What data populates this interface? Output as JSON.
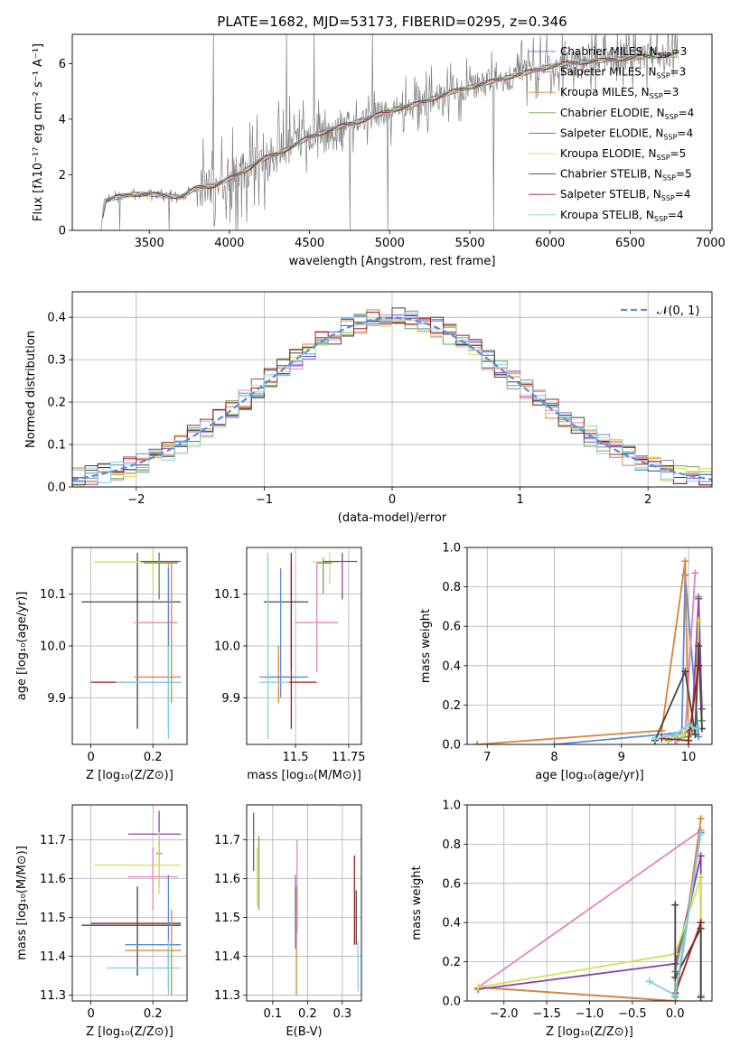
{
  "figure_title": "PLATE=1682, MJD=53173, FIBERID=0295, z=0.346",
  "chart_data": [
    {
      "id": "spectrum",
      "type": "line",
      "xlabel": "wavelength [Angstrom, rest frame]",
      "ylabel": "Flux [fλ10⁻¹⁷ erg cm⁻² s⁻¹ A⁻¹]",
      "xlim": [
        3020,
        7010
      ],
      "ylim": [
        0,
        7.05
      ],
      "xticks": [
        3500,
        4000,
        4500,
        5000,
        5500,
        6000,
        6500,
        7000
      ],
      "yticks": [
        0,
        2,
        4,
        6
      ],
      "legend_position": "top-right",
      "series": [
        {
          "name": "Chabrier MILES, N_SSP=3",
          "color": "#5a8bd6"
        },
        {
          "name": "Salpeter MILES, N_SSP=3",
          "color": "#e585bd"
        },
        {
          "name": "Kroupa MILES, N_SSP=3",
          "color": "#d9843a"
        },
        {
          "name": "Chabrier ELODIE, N_SSP=4",
          "color": "#6aa84f"
        },
        {
          "name": "Salpeter ELODIE, N_SSP=4",
          "color": "#8e44ad"
        },
        {
          "name": "Kroupa ELODIE, N_SSP=5",
          "color": "#d4e157"
        },
        {
          "name": "Chabrier STELIB, N_SSP=5",
          "color": "#444444"
        },
        {
          "name": "Salpeter STELIB, N_SSP=4",
          "color": "#a61c1c"
        },
        {
          "name": "Kroupa STELIB, N_SSP=4",
          "color": "#7fd0e8"
        }
      ],
      "observed_color": "#7f7f7f",
      "continuum_points": [
        [
          3200,
          0
        ],
        [
          3220,
          1.05
        ],
        [
          3300,
          1.2
        ],
        [
          3400,
          1.3
        ],
        [
          3500,
          1.3
        ],
        [
          3600,
          1.25
        ],
        [
          3700,
          1.2
        ],
        [
          3800,
          1.55
        ],
        [
          3900,
          1.6
        ],
        [
          4000,
          1.85
        ],
        [
          4100,
          2.15
        ],
        [
          4200,
          2.55
        ],
        [
          4300,
          2.75
        ],
        [
          4400,
          3.05
        ],
        [
          4500,
          3.35
        ],
        [
          4600,
          3.55
        ],
        [
          4700,
          3.75
        ],
        [
          4800,
          3.9
        ],
        [
          4900,
          4.1
        ],
        [
          5000,
          4.3
        ],
        [
          5100,
          4.45
        ],
        [
          5200,
          4.6
        ],
        [
          5300,
          4.8
        ],
        [
          5400,
          5.0
        ],
        [
          5500,
          5.15
        ],
        [
          5600,
          5.3
        ],
        [
          5700,
          5.45
        ],
        [
          5800,
          5.6
        ],
        [
          5900,
          5.75
        ],
        [
          6000,
          5.9
        ],
        [
          6100,
          6.0
        ],
        [
          6200,
          6.05
        ],
        [
          6300,
          6.1
        ],
        [
          6400,
          6.15
        ],
        [
          6500,
          6.2
        ],
        [
          6600,
          6.25
        ],
        [
          6700,
          6.3
        ],
        [
          6800,
          6.3
        ]
      ]
    },
    {
      "id": "residuals",
      "type": "line",
      "xlabel": "(data-model)/error",
      "ylabel": "Normed distribution",
      "xlim": [
        -2.5,
        2.5
      ],
      "ylim": [
        0,
        0.46
      ],
      "xticks": [
        -2,
        -1,
        0,
        1,
        2
      ],
      "yticks": [
        0.0,
        0.1,
        0.2,
        0.3,
        0.4
      ],
      "grid": true,
      "legend_position": "top-right",
      "legend_label": "𝒩(0, 1)",
      "gaussian_color": "#5a8bd6"
    },
    {
      "id": "z-vs-age",
      "type": "scatter",
      "xlabel": "Z [log₁₀(Z/Z⊙)]",
      "ylabel": "age  [log₁₀(age/yr)]",
      "xlim": [
        -0.06,
        0.31
      ],
      "ylim": [
        9.81,
        10.19
      ],
      "xticks": [
        0.0,
        0.2
      ],
      "yticks": [
        9.9,
        10.0,
        10.1
      ],
      "grid": true,
      "errorbars": [
        {
          "series": 6,
          "x": 0.15,
          "y": 10.085,
          "xlo": -0.03,
          "xhi": 0.29,
          "ylo": 9.84,
          "yhi": 10.18
        },
        {
          "series": 5,
          "x": 0.2,
          "y": 10.162,
          "xlo": 0.01,
          "xhi": 0.28,
          "ylo": 10.12,
          "yhi": 10.18
        },
        {
          "series": 4,
          "x": 0.22,
          "y": 10.163,
          "xlo": 0.16,
          "xhi": 0.29,
          "ylo": 10.09,
          "yhi": 10.18
        },
        {
          "series": 3,
          "x": 0.22,
          "y": 10.16,
          "xlo": 0.17,
          "xhi": 0.28,
          "ylo": 10.1,
          "yhi": 10.17
        },
        {
          "series": 1,
          "x": 0.25,
          "y": 10.045,
          "xlo": 0.14,
          "xhi": 0.28,
          "ylo": 9.95,
          "yhi": 10.16
        },
        {
          "series": 2,
          "x": 0.26,
          "y": 9.94,
          "xlo": 0.14,
          "xhi": 0.29,
          "ylo": 9.89,
          "yhi": 10.16
        },
        {
          "series": 0,
          "x": 0.25,
          "y": 9.93,
          "xlo": 0.12,
          "xhi": 0.29,
          "ylo": 9.84,
          "yhi": 10.15
        },
        {
          "series": 7,
          "x": 0.06,
          "y": 9.93,
          "xlo": 0.0,
          "xhi": 0.11,
          "ylo": 9.93,
          "yhi": 9.93
        },
        {
          "series": 8,
          "x": 0.25,
          "y": 9.93,
          "xlo": 0.08,
          "xhi": 0.29,
          "ylo": 9.82,
          "yhi": 10.0
        }
      ]
    },
    {
      "id": "mass-vs-age",
      "type": "scatter",
      "xlabel": "mass [log₁₀(M/M⊙)]",
      "ylabel": "",
      "xlim": [
        11.27,
        11.81
      ],
      "ylim": [
        9.81,
        10.19
      ],
      "xticks": [
        11.5,
        11.75
      ],
      "yticks": [
        9.9,
        10.0,
        10.1
      ],
      "grid": true,
      "errorbars": [
        {
          "series": 5,
          "x": 11.66,
          "y": 10.162,
          "xlo": 11.58,
          "xhi": 11.7,
          "ylo": 10.12,
          "yhi": 10.18
        },
        {
          "series": 4,
          "x": 11.72,
          "y": 10.163,
          "xlo": 11.63,
          "xhi": 11.79,
          "ylo": 10.09,
          "yhi": 10.18
        },
        {
          "series": 3,
          "x": 11.63,
          "y": 10.16,
          "xlo": 11.6,
          "xhi": 11.67,
          "ylo": 10.1,
          "yhi": 10.17
        },
        {
          "series": 6,
          "x": 11.48,
          "y": 10.085,
          "xlo": 11.35,
          "xhi": 11.56,
          "ylo": 9.96,
          "yhi": 10.18
        },
        {
          "series": 1,
          "x": 11.6,
          "y": 10.045,
          "xlo": 11.5,
          "xhi": 11.7,
          "ylo": 9.95,
          "yhi": 10.16
        },
        {
          "series": 2,
          "x": 11.42,
          "y": 9.94,
          "xlo": 11.33,
          "xhi": 11.5,
          "ylo": 9.89,
          "yhi": 10.0
        },
        {
          "series": 0,
          "x": 11.43,
          "y": 9.94,
          "xlo": 11.36,
          "xhi": 11.56,
          "ylo": 9.9,
          "yhi": 10.15
        },
        {
          "series": 7,
          "x": 11.48,
          "y": 9.93,
          "xlo": 11.47,
          "xhi": 11.6,
          "ylo": 9.84,
          "yhi": 10.16
        },
        {
          "series": 8,
          "x": 11.37,
          "y": 9.93,
          "xlo": 11.33,
          "xhi": 11.47,
          "ylo": 9.82,
          "yhi": 10.18
        }
      ]
    },
    {
      "id": "age-vs-weight",
      "type": "line",
      "xlabel": "age  [log₁₀(age/yr)]",
      "ylabel": "mass weight",
      "xlim": [
        6.7,
        10.35
      ],
      "ylim": [
        0,
        1.0
      ],
      "xticks": [
        7,
        8,
        9,
        10
      ],
      "yticks": [
        0.0,
        0.2,
        0.4,
        0.6,
        0.8,
        1.0
      ],
      "grid": true,
      "series": [
        {
          "series": 0,
          "points": [
            [
              8.0,
              0.0
            ],
            [
              9.9,
              0.06
            ],
            [
              9.95,
              0.86
            ],
            [
              10.15,
              0.04
            ]
          ]
        },
        {
          "series": 1,
          "points": [
            [
              9.8,
              0.0
            ],
            [
              9.95,
              0.06
            ],
            [
              10.1,
              0.87
            ]
          ]
        },
        {
          "series": 2,
          "points": [
            [
              6.85,
              0.0
            ],
            [
              9.6,
              0.07
            ],
            [
              9.95,
              0.93
            ],
            [
              10.0,
              0.0
            ]
          ]
        },
        {
          "series": 3,
          "points": [
            [
              9.7,
              0.02
            ],
            [
              10.0,
              0.04
            ],
            [
              10.1,
              0.07
            ],
            [
              10.15,
              0.75
            ],
            [
              10.2,
              0.12
            ]
          ]
        },
        {
          "series": 4,
          "points": [
            [
              9.8,
              0.04
            ],
            [
              10.05,
              0.08
            ],
            [
              10.15,
              0.74
            ],
            [
              10.2,
              0.18
            ]
          ]
        },
        {
          "series": 5,
          "points": [
            [
              9.7,
              0.03
            ],
            [
              9.9,
              0.05
            ],
            [
              10.05,
              0.1
            ],
            [
              10.1,
              0.05
            ],
            [
              10.15,
              0.63
            ]
          ]
        },
        {
          "series": 6,
          "points": [
            [
              9.5,
              0.02
            ],
            [
              9.95,
              0.37
            ],
            [
              10.1,
              0.05
            ],
            [
              10.15,
              0.5
            ],
            [
              10.2,
              0.08
            ]
          ]
        },
        {
          "series": 7,
          "points": [
            [
              9.6,
              0.03
            ],
            [
              10.0,
              0.02
            ],
            [
              10.15,
              0.4
            ]
          ]
        },
        {
          "series": 8,
          "points": [
            [
              9.5,
              0.03
            ],
            [
              9.8,
              0.05
            ],
            [
              10.0,
              0.1
            ],
            [
              10.12,
              0.08
            ]
          ]
        }
      ]
    },
    {
      "id": "z-vs-mass",
      "type": "scatter",
      "xlabel": "Z [log₁₀(Z/Z⊙)]",
      "ylabel": "mass [log₁₀(M/M⊙)]",
      "xlim": [
        -0.06,
        0.31
      ],
      "ylim": [
        11.285,
        11.79
      ],
      "xticks": [
        0.0,
        0.2
      ],
      "yticks": [
        11.3,
        11.4,
        11.5,
        11.6,
        11.7
      ],
      "grid": true,
      "errorbars": [
        {
          "series": 4,
          "x": 0.22,
          "y": 11.715,
          "xlo": 0.12,
          "xhi": 0.29,
          "ylo": 11.66,
          "yhi": 11.775
        },
        {
          "series": 3,
          "x": 0.22,
          "y": 11.665,
          "xlo": 0.21,
          "xhi": 0.23,
          "ylo": 11.58,
          "yhi": 11.71
        },
        {
          "series": 5,
          "x": 0.22,
          "y": 11.635,
          "xlo": 0.01,
          "xhi": 0.29,
          "ylo": 11.56,
          "yhi": 11.72
        },
        {
          "series": 1,
          "x": 0.2,
          "y": 11.605,
          "xlo": 0.12,
          "xhi": 0.28,
          "ylo": 11.52,
          "yhi": 11.68
        },
        {
          "series": 6,
          "x": 0.15,
          "y": 11.48,
          "xlo": -0.03,
          "xhi": 0.29,
          "ylo": 11.35,
          "yhi": 11.58
        },
        {
          "series": 7,
          "x": 0.15,
          "y": 11.485,
          "xlo": 0.0,
          "xhi": 0.29,
          "ylo": 11.485,
          "yhi": 11.485
        },
        {
          "series": 0,
          "x": 0.25,
          "y": 11.43,
          "xlo": 0.11,
          "xhi": 0.29,
          "ylo": 11.32,
          "yhi": 11.61
        },
        {
          "series": 2,
          "x": 0.26,
          "y": 11.415,
          "xlo": 0.11,
          "xhi": 0.29,
          "ylo": 11.3,
          "yhi": 11.52
        },
        {
          "series": 8,
          "x": 0.25,
          "y": 11.37,
          "xlo": 0.05,
          "xhi": 0.29,
          "ylo": 11.3,
          "yhi": 11.44
        }
      ]
    },
    {
      "id": "ebv-vs-mass",
      "type": "scatter",
      "xlabel": "E(B-V)",
      "ylabel": "",
      "xlim": [
        0.025,
        0.355
      ],
      "ylim": [
        11.285,
        11.79
      ],
      "xticks": [
        0.1,
        0.2,
        0.3
      ],
      "yticks": [
        11.3,
        11.4,
        11.5,
        11.6,
        11.7
      ],
      "grid": true,
      "errorbars": [
        {
          "series": 4,
          "x": 0.045,
          "y": 11.7,
          "xlo": 0.045,
          "xhi": 0.045,
          "ylo": 11.62,
          "yhi": 11.77
        },
        {
          "series": 5,
          "x": 0.055,
          "y": 11.6,
          "xlo": 0.055,
          "xhi": 0.055,
          "ylo": 11.53,
          "yhi": 11.68
        },
        {
          "series": 3,
          "x": 0.06,
          "y": 11.62,
          "xlo": 0.06,
          "xhi": 0.06,
          "ylo": 11.52,
          "yhi": 11.71
        },
        {
          "series": 1,
          "x": 0.17,
          "y": 11.6,
          "xlo": 0.17,
          "xhi": 0.17,
          "ylo": 11.46,
          "yhi": 11.7
        },
        {
          "series": 0,
          "x": 0.165,
          "y": 11.5,
          "xlo": 0.165,
          "xhi": 0.165,
          "ylo": 11.42,
          "yhi": 11.61
        },
        {
          "series": 2,
          "x": 0.168,
          "y": 11.42,
          "xlo": 0.168,
          "xhi": 0.168,
          "ylo": 11.3,
          "yhi": 11.58
        },
        {
          "series": 7,
          "x": 0.335,
          "y": 11.56,
          "xlo": 0.335,
          "xhi": 0.335,
          "ylo": 11.43,
          "yhi": 11.66
        },
        {
          "series": 6,
          "x": 0.34,
          "y": 11.5,
          "xlo": 0.34,
          "xhi": 0.34,
          "ylo": 11.43,
          "yhi": 11.57
        },
        {
          "series": 8,
          "x": 0.345,
          "y": 11.37,
          "xlo": 0.345,
          "xhi": 0.345,
          "ylo": 11.31,
          "yhi": 11.44
        }
      ]
    },
    {
      "id": "z-vs-weight",
      "type": "line",
      "xlabel": "Z [log₁₀(Z/Z⊙)]",
      "ylabel": "mass weight",
      "xlim": [
        -2.43,
        0.43
      ],
      "ylim": [
        0,
        1.0
      ],
      "xticks": [
        -2.0,
        -1.5,
        -1.0,
        -0.5,
        0.0
      ],
      "yticks": [
        0.0,
        0.2,
        0.4,
        0.6,
        0.8,
        1.0
      ],
      "grid": true,
      "series": [
        {
          "series": 0,
          "points": [
            [
              -2.3,
              0.07
            ],
            [
              0.0,
              0.0
            ],
            [
              0.3,
              0.86
            ]
          ]
        },
        {
          "series": 1,
          "points": [
            [
              -2.3,
              0.07
            ],
            [
              0.3,
              0.87
            ]
          ]
        },
        {
          "series": 2,
          "points": [
            [
              -2.3,
              0.07
            ],
            [
              0.0,
              0.0
            ],
            [
              0.3,
              0.93
            ]
          ]
        },
        {
          "series": 3,
          "points": [
            [
              0.0,
              0.02
            ],
            [
              0.0,
              0.15
            ],
            [
              0.3,
              0.74
            ],
            [
              0.3,
              0.02
            ]
          ]
        },
        {
          "series": 4,
          "points": [
            [
              -2.3,
              0.06
            ],
            [
              0.0,
              0.19
            ],
            [
              0.3,
              0.74
            ],
            [
              0.3,
              0.02
            ]
          ]
        },
        {
          "series": 5,
          "points": [
            [
              -2.3,
              0.07
            ],
            [
              0.0,
              0.24
            ],
            [
              0.3,
              0.63
            ],
            [
              0.3,
              0.03
            ]
          ]
        },
        {
          "series": 6,
          "points": [
            [
              0.0,
              0.49
            ],
            [
              0.0,
              0.12
            ],
            [
              0.3,
              0.37
            ],
            [
              0.3,
              0.02
            ]
          ]
        },
        {
          "series": 7,
          "points": [
            [
              0.0,
              0.04
            ],
            [
              0.3,
              0.4
            ]
          ]
        },
        {
          "series": 8,
          "points": [
            [
              -0.3,
              0.1
            ],
            [
              0.0,
              0.03
            ],
            [
              0.3,
              0.85
            ]
          ]
        }
      ]
    }
  ]
}
